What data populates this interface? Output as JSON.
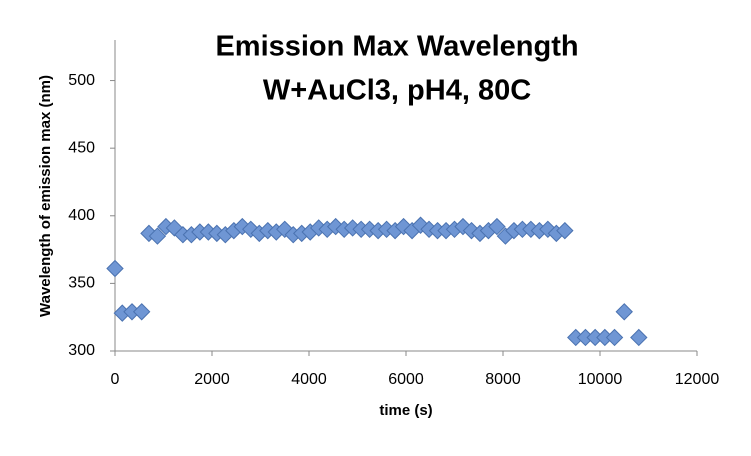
{
  "chart_data": {
    "type": "scatter",
    "title": [
      "Emission Max Wavelength",
      "W+AuCl3, pH4, 80C"
    ],
    "x_label": "time (s)",
    "y_label": "Wavelength of emission max (nm)",
    "x": [
      0,
      150,
      350,
      550,
      700,
      875,
      1050,
      1225,
      1400,
      1575,
      1750,
      1925,
      2100,
      2275,
      2450,
      2625,
      2800,
      2975,
      3150,
      3325,
      3500,
      3675,
      3850,
      4025,
      4200,
      4375,
      4550,
      4725,
      4900,
      5075,
      5250,
      5425,
      5600,
      5775,
      5950,
      6125,
      6300,
      6475,
      6650,
      6825,
      7000,
      7175,
      7350,
      7525,
      7700,
      7875,
      8050,
      8225,
      8400,
      8575,
      8750,
      8925,
      9100,
      9275,
      9500,
      9700,
      9900,
      10100,
      10300,
      10500,
      10800
    ],
    "series": [
      {
        "color": "#6f96d4",
        "values": [
          361,
          328,
          329,
          329,
          387,
          385,
          392,
          391,
          386,
          386,
          388,
          388,
          387,
          386,
          389,
          392,
          390,
          387,
          389,
          388,
          390,
          386,
          387,
          388,
          391,
          390,
          392,
          390,
          391,
          390,
          390,
          389,
          390,
          389,
          392,
          389,
          393,
          390,
          389,
          389,
          390,
          392,
          389,
          387,
          389,
          392,
          385,
          389,
          390,
          390,
          389,
          390,
          387,
          389,
          310,
          310,
          310,
          310,
          310,
          329,
          310
        ]
      }
    ],
    "xlim": [
      0,
      12000
    ],
    "xticks": [
      0,
      2000,
      4000,
      6000,
      8000,
      10000,
      12000
    ],
    "ylim": [
      300,
      530
    ],
    "yticks": [
      300,
      350,
      400,
      450,
      500
    ]
  }
}
